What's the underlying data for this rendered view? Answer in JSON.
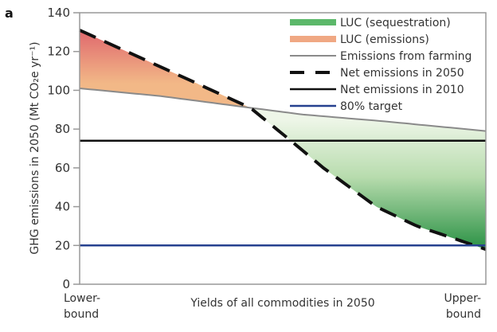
{
  "panel_label": "a",
  "chart_data": {
    "type": "area",
    "title": "",
    "xlabel": "Yields of all commodities in 2050",
    "ylabel": "GHG emissions in 2050 (Mt CO₂e yr⁻¹)",
    "x_tick_labels": [
      {
        "line1": "Lower-",
        "line2": "bound"
      },
      {
        "line1": "Upper-",
        "line2": "bound"
      }
    ],
    "xlim": [
      0,
      1
    ],
    "ylim": [
      0,
      140
    ],
    "yticks": [
      0,
      20,
      40,
      60,
      80,
      100,
      120,
      140
    ],
    "grid": false,
    "legend_position": "top-right",
    "series": [
      {
        "name": "Emissions from farming",
        "style": "solid",
        "color": "#8a8a8a",
        "x": [
          0,
          0.2,
          0.42,
          0.55,
          0.75,
          1.0
        ],
        "y": [
          101,
          97,
          91,
          87.5,
          84,
          79
        ]
      },
      {
        "name": "Net emissions in 2050",
        "style": "dashed",
        "color": "#111111",
        "x": [
          0,
          0.2,
          0.42,
          0.52,
          0.6,
          0.73,
          0.83,
          0.93,
          1.0
        ],
        "y": [
          131,
          112,
          91,
          74,
          60,
          40,
          30,
          23,
          18
        ]
      },
      {
        "name": "Net emissions in 2010",
        "style": "solid",
        "color": "#111111",
        "x": [
          0,
          1
        ],
        "y": [
          74,
          74
        ]
      },
      {
        "name": "80% target",
        "style": "solid",
        "color": "#26418f",
        "x": [
          0,
          1
        ],
        "y": [
          20,
          20
        ]
      }
    ],
    "areas": [
      {
        "name": "LUC (emissions)",
        "between": [
          "Emissions from farming",
          "Net emissions in 2050"
        ],
        "where": "net above farming",
        "colors": [
          "#e06a6e",
          "#f2b887"
        ]
      },
      {
        "name": "LUC (sequestration)",
        "between": [
          "Net emissions in 2050",
          "Emissions from farming"
        ],
        "where": "net below farming",
        "colors": [
          "#eef6e8",
          "#2f9448"
        ]
      }
    ],
    "legend": [
      {
        "label": "LUC (sequestration)",
        "kind": "band",
        "color": "#5cb86a"
      },
      {
        "label": "LUC (emissions)",
        "kind": "band",
        "color": "#f0a883"
      },
      {
        "label": "Emissions from farming",
        "kind": "line",
        "color": "#8a8a8a"
      },
      {
        "label": "Net emissions in 2050",
        "kind": "dash",
        "color": "#111111"
      },
      {
        "label": "Net emissions in 2010",
        "kind": "line",
        "color": "#111111"
      },
      {
        "label": "80% target",
        "kind": "line",
        "color": "#26418f"
      }
    ]
  }
}
